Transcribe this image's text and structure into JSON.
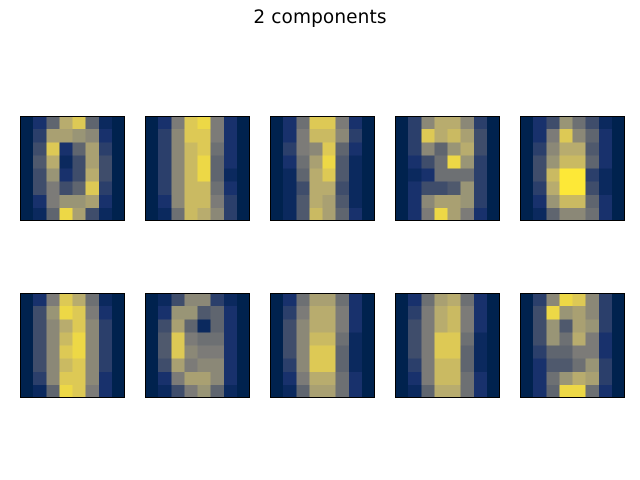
{
  "figure": {
    "title": "2 components"
  },
  "chart_data": [
    {
      "type": "heatmap",
      "title": "",
      "grid": false,
      "colormap": "cividis",
      "vmin": 0,
      "vmax": 16,
      "values": [
        [
          0,
          2,
          6,
          12,
          14,
          6,
          1,
          0
        ],
        [
          0,
          3,
          11,
          11,
          10,
          9,
          2,
          0
        ],
        [
          0,
          4,
          14,
          2,
          6,
          11,
          3,
          0
        ],
        [
          0,
          5,
          12,
          1,
          4,
          11,
          4,
          0
        ],
        [
          0,
          4,
          10,
          2,
          4,
          12,
          4,
          0
        ],
        [
          0,
          4,
          8,
          4,
          6,
          14,
          3,
          0
        ],
        [
          0,
          2,
          8,
          10,
          10,
          11,
          2,
          0
        ],
        [
          0,
          1,
          6,
          15,
          11,
          4,
          1,
          0
        ]
      ]
    },
    {
      "type": "heatmap",
      "title": "",
      "grid": false,
      "colormap": "cividis",
      "vmin": 0,
      "vmax": 16,
      "values": [
        [
          0,
          2,
          8,
          14,
          15,
          8,
          2,
          0
        ],
        [
          0,
          3,
          9,
          14,
          14,
          8,
          2,
          0
        ],
        [
          0,
          3,
          9,
          13,
          14,
          7,
          2,
          0
        ],
        [
          0,
          3,
          9,
          13,
          15,
          6,
          2,
          0
        ],
        [
          0,
          3,
          9,
          13,
          15,
          6,
          1,
          0
        ],
        [
          0,
          3,
          9,
          13,
          13,
          7,
          2,
          0
        ],
        [
          0,
          2,
          9,
          13,
          13,
          8,
          3,
          0
        ],
        [
          0,
          1,
          7,
          13,
          12,
          9,
          3,
          0
        ]
      ]
    },
    {
      "type": "heatmap",
      "title": "",
      "grid": false,
      "colormap": "cividis",
      "vmin": 0,
      "vmax": 16,
      "values": [
        [
          0,
          2,
          7,
          14,
          14,
          8,
          2,
          0
        ],
        [
          0,
          2,
          8,
          13,
          13,
          9,
          3,
          0
        ],
        [
          0,
          3,
          8,
          9,
          14,
          6,
          2,
          0
        ],
        [
          0,
          2,
          7,
          11,
          15,
          5,
          1,
          0
        ],
        [
          0,
          1,
          6,
          12,
          14,
          5,
          1,
          0
        ],
        [
          0,
          1,
          4,
          12,
          12,
          4,
          1,
          0
        ],
        [
          0,
          1,
          5,
          12,
          11,
          5,
          1,
          0
        ],
        [
          0,
          1,
          5,
          13,
          11,
          6,
          2,
          0
        ]
      ]
    },
    {
      "type": "heatmap",
      "title": "",
      "grid": false,
      "colormap": "cividis",
      "vmin": 0,
      "vmax": 16,
      "values": [
        [
          0,
          3,
          9,
          12,
          12,
          9,
          3,
          0
        ],
        [
          0,
          3,
          14,
          12,
          13,
          11,
          4,
          0
        ],
        [
          0,
          3,
          9,
          6,
          10,
          12,
          4,
          0
        ],
        [
          0,
          2,
          4,
          7,
          15,
          10,
          3,
          0
        ],
        [
          0,
          1,
          2,
          7,
          7,
          7,
          3,
          0
        ],
        [
          0,
          2,
          4,
          4,
          5,
          10,
          3,
          0
        ],
        [
          0,
          2,
          9,
          11,
          11,
          10,
          3,
          0
        ],
        [
          0,
          2,
          8,
          15,
          11,
          8,
          2,
          0
        ]
      ]
    },
    {
      "type": "heatmap",
      "title": "",
      "grid": false,
      "colormap": "cividis",
      "vmin": 0,
      "vmax": 16,
      "values": [
        [
          0,
          2,
          4,
          10,
          7,
          4,
          1,
          0
        ],
        [
          0,
          2,
          8,
          14,
          9,
          6,
          2,
          0
        ],
        [
          0,
          3,
          9,
          12,
          12,
          5,
          2,
          0
        ],
        [
          0,
          4,
          10,
          13,
          13,
          6,
          2,
          0
        ],
        [
          0,
          4,
          13,
          16,
          16,
          3,
          1,
          0
        ],
        [
          0,
          3,
          12,
          16,
          16,
          4,
          1,
          0
        ],
        [
          0,
          2,
          10,
          13,
          13,
          6,
          2,
          0
        ],
        [
          0,
          1,
          6,
          9,
          9,
          7,
          2,
          0
        ]
      ]
    },
    {
      "type": "heatmap",
      "title": "",
      "grid": false,
      "colormap": "cividis",
      "vmin": 0,
      "vmax": 16,
      "values": [
        [
          0,
          2,
          8,
          14,
          12,
          7,
          1,
          0
        ],
        [
          0,
          4,
          10,
          15,
          14,
          8,
          2,
          0
        ],
        [
          0,
          4,
          9,
          12,
          14,
          9,
          3,
          0
        ],
        [
          0,
          4,
          9,
          13,
          15,
          9,
          3,
          0
        ],
        [
          0,
          4,
          9,
          14,
          15,
          9,
          3,
          0
        ],
        [
          0,
          4,
          9,
          13,
          14,
          9,
          3,
          0
        ],
        [
          0,
          3,
          9,
          14,
          14,
          9,
          2,
          0
        ],
        [
          0,
          1,
          6,
          15,
          14,
          8,
          2,
          0
        ]
      ]
    },
    {
      "type": "heatmap",
      "title": "",
      "grid": false,
      "colormap": "cividis",
      "vmin": 0,
      "vmax": 16,
      "values": [
        [
          0,
          1,
          4,
          9,
          9,
          3,
          1,
          0
        ],
        [
          0,
          2,
          10,
          10,
          5,
          6,
          2,
          0
        ],
        [
          0,
          4,
          11,
          6,
          1,
          6,
          2,
          0
        ],
        [
          0,
          5,
          14,
          8,
          7,
          7,
          2,
          0
        ],
        [
          0,
          5,
          14,
          9,
          8,
          8,
          2,
          0
        ],
        [
          0,
          4,
          11,
          8,
          9,
          9,
          2,
          0
        ],
        [
          0,
          2,
          8,
          11,
          11,
          9,
          2,
          0
        ],
        [
          0,
          1,
          4,
          8,
          10,
          6,
          1,
          0
        ]
      ]
    },
    {
      "type": "heatmap",
      "title": "",
      "grid": false,
      "colormap": "cividis",
      "vmin": 0,
      "vmax": 16,
      "values": [
        [
          0,
          2,
          7,
          11,
          11,
          7,
          2,
          0
        ],
        [
          0,
          3,
          8,
          12,
          12,
          8,
          2,
          0
        ],
        [
          0,
          4,
          9,
          12,
          12,
          8,
          2,
          0
        ],
        [
          0,
          4,
          9,
          13,
          13,
          7,
          1,
          0
        ],
        [
          0,
          4,
          9,
          14,
          14,
          6,
          1,
          0
        ],
        [
          0,
          3,
          9,
          14,
          14,
          6,
          1,
          0
        ],
        [
          0,
          2,
          8,
          12,
          12,
          7,
          2,
          0
        ],
        [
          0,
          1,
          6,
          11,
          11,
          7,
          2,
          0
        ]
      ]
    },
    {
      "type": "heatmap",
      "title": "",
      "grid": false,
      "colormap": "cividis",
      "vmin": 0,
      "vmax": 16,
      "values": [
        [
          0,
          2,
          7,
          11,
          12,
          7,
          2,
          0
        ],
        [
          0,
          3,
          8,
          12,
          13,
          8,
          2,
          0
        ],
        [
          0,
          4,
          8,
          12,
          13,
          8,
          2,
          0
        ],
        [
          0,
          4,
          8,
          14,
          14,
          7,
          1,
          0
        ],
        [
          0,
          4,
          8,
          14,
          14,
          6,
          1,
          0
        ],
        [
          0,
          3,
          8,
          13,
          13,
          6,
          1,
          0
        ],
        [
          0,
          2,
          8,
          13,
          13,
          7,
          2,
          0
        ],
        [
          0,
          1,
          6,
          12,
          12,
          7,
          2,
          0
        ]
      ]
    },
    {
      "type": "heatmap",
      "title": "",
      "grid": false,
      "colormap": "cividis",
      "vmin": 0,
      "vmax": 16,
      "values": [
        [
          0,
          3,
          9,
          15,
          14,
          9,
          3,
          0
        ],
        [
          0,
          4,
          15,
          10,
          11,
          9,
          3,
          0
        ],
        [
          0,
          4,
          10,
          5,
          11,
          10,
          3,
          0
        ],
        [
          0,
          4,
          10,
          7,
          12,
          8,
          2,
          0
        ],
        [
          0,
          3,
          6,
          6,
          8,
          8,
          2,
          0
        ],
        [
          0,
          2,
          5,
          5,
          7,
          10,
          3,
          0
        ],
        [
          0,
          2,
          7,
          10,
          12,
          11,
          3,
          0
        ],
        [
          0,
          2,
          6,
          15,
          15,
          7,
          2,
          0
        ]
      ]
    }
  ]
}
